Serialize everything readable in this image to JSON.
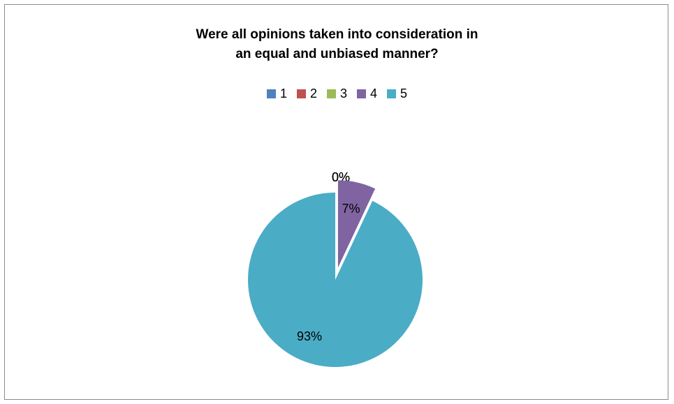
{
  "chart_data": {
    "type": "pie",
    "title": "Were all opinions taken into consideration in an equal and unbiased manner?",
    "title_lines": [
      "Were all opinions taken into consideration in",
      "an equal and unbiased manner?"
    ],
    "legend_position": "top",
    "categories": [
      "1",
      "2",
      "3",
      "4",
      "5"
    ],
    "values": [
      0,
      0,
      0,
      7,
      93
    ],
    "data_labels": [
      "0%",
      "0%",
      "0%",
      "7%",
      "93%"
    ],
    "colors": [
      "#4f81bd",
      "#c0504d",
      "#9bbb59",
      "#8064a2",
      "#4bacc6"
    ],
    "exploded": true
  }
}
